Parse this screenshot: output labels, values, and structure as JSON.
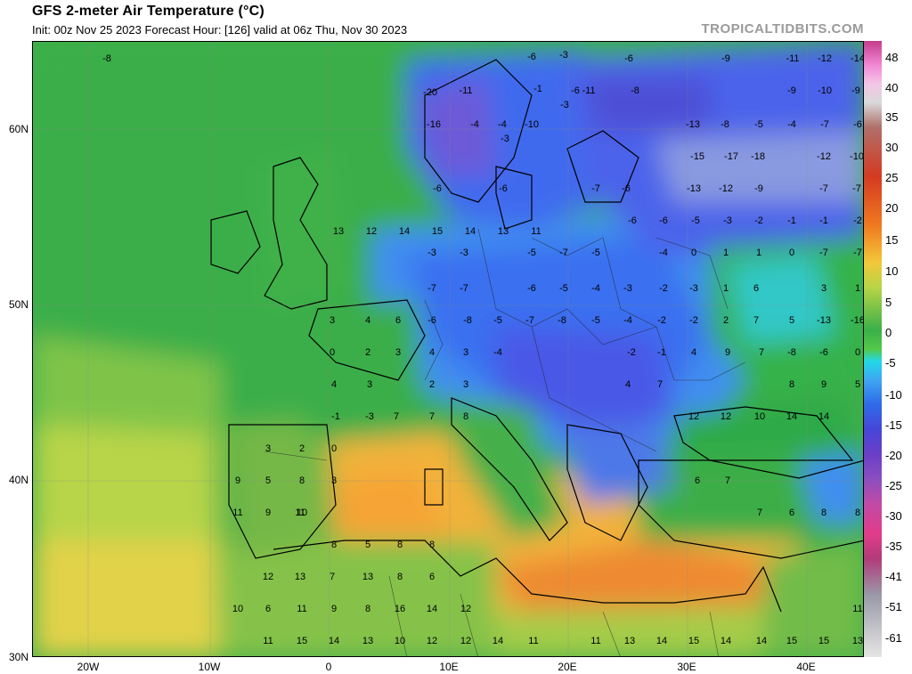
{
  "header": {
    "title": "GFS 2-meter Air Temperature (°C)",
    "subtitle": "Init: 00z Nov 25 2023   Forecast Hour: [126]   valid at 06z Thu, Nov 30 2023",
    "credit": "TROPICALTIDBITS.COM"
  },
  "axes": {
    "lat_ticks": [
      "60N",
      "50N",
      "40N",
      "30N"
    ],
    "lon_ticks": [
      "20W",
      "10W",
      "0",
      "10E",
      "20E",
      "30E",
      "40E"
    ]
  },
  "colorbar": {
    "labels": [
      "48",
      "40",
      "35",
      "30",
      "25",
      "20",
      "15",
      "10",
      "5",
      "0",
      "-5",
      "-10",
      "-15",
      "-20",
      "-25",
      "-30",
      "-35",
      "-41",
      "-51",
      "-61"
    ]
  },
  "map_values": [
    {
      "label": "-8"
    },
    {
      "label": "-20"
    },
    {
      "label": "-11"
    },
    {
      "label": "-16"
    },
    {
      "label": "-4"
    },
    {
      "label": "-3"
    },
    {
      "label": "-6"
    },
    {
      "label": "-3"
    },
    {
      "label": "-1"
    },
    {
      "label": "-6"
    },
    {
      "label": "-3"
    },
    {
      "label": "-6"
    },
    {
      "label": "-9"
    },
    {
      "label": "-11"
    },
    {
      "label": "-12"
    },
    {
      "label": "-14"
    },
    {
      "label": "-11"
    },
    {
      "label": "-8"
    },
    {
      "label": "-9"
    },
    {
      "label": "-10"
    },
    {
      "label": "-9"
    },
    {
      "label": "-4"
    },
    {
      "label": "-10"
    },
    {
      "label": "-13"
    },
    {
      "label": "-8"
    },
    {
      "label": "-5"
    },
    {
      "label": "-4"
    },
    {
      "label": "-7"
    },
    {
      "label": "-6"
    },
    {
      "label": "-15"
    },
    {
      "label": "-17"
    },
    {
      "label": "-18"
    },
    {
      "label": "-12"
    },
    {
      "label": "-10"
    },
    {
      "label": "-13"
    },
    {
      "label": "-12"
    },
    {
      "label": "-9"
    },
    {
      "label": "-7"
    },
    {
      "label": "-7"
    },
    {
      "label": "-7"
    },
    {
      "label": "-6"
    },
    {
      "label": "-6"
    },
    {
      "label": "-6"
    },
    {
      "label": "-6"
    },
    {
      "label": "-6"
    },
    {
      "label": "-5"
    },
    {
      "label": "-3"
    },
    {
      "label": "-2"
    },
    {
      "label": "-1"
    },
    {
      "label": "-1"
    },
    {
      "label": "-2"
    },
    {
      "label": "-3"
    },
    {
      "label": "-3"
    },
    {
      "label": "-5"
    },
    {
      "label": "-7"
    },
    {
      "label": "-5"
    },
    {
      "label": "-4"
    },
    {
      "label": "0"
    },
    {
      "label": "1"
    },
    {
      "label": "1"
    },
    {
      "label": "0"
    },
    {
      "label": "-7"
    },
    {
      "label": "-7"
    },
    {
      "label": "-7"
    },
    {
      "label": "-7"
    },
    {
      "label": "-6"
    },
    {
      "label": "-5"
    },
    {
      "label": "-4"
    },
    {
      "label": "-3"
    },
    {
      "label": "-2"
    },
    {
      "label": "-3"
    },
    {
      "label": "1"
    },
    {
      "label": "6"
    },
    {
      "label": "3"
    },
    {
      "label": "1"
    },
    {
      "label": "-6"
    },
    {
      "label": "-8"
    },
    {
      "label": "-5"
    },
    {
      "label": "-7"
    },
    {
      "label": "-8"
    },
    {
      "label": "-5"
    },
    {
      "label": "-4"
    },
    {
      "label": "-2"
    },
    {
      "label": "-2"
    },
    {
      "label": "2"
    },
    {
      "label": "7"
    },
    {
      "label": "5"
    },
    {
      "label": "-13"
    },
    {
      "label": "-16"
    },
    {
      "label": "-4"
    },
    {
      "label": "-2"
    },
    {
      "label": "-1"
    },
    {
      "label": "4"
    },
    {
      "label": "9"
    },
    {
      "label": "7"
    },
    {
      "label": "-8"
    },
    {
      "label": "-6"
    },
    {
      "label": "0"
    },
    {
      "label": "4"
    },
    {
      "label": "7"
    },
    {
      "label": "8"
    },
    {
      "label": "9"
    },
    {
      "label": "5"
    },
    {
      "label": "3"
    },
    {
      "label": "4"
    },
    {
      "label": "6"
    },
    {
      "label": "2"
    },
    {
      "label": "3"
    },
    {
      "label": "0"
    },
    {
      "label": "2"
    },
    {
      "label": "3"
    },
    {
      "label": "4"
    },
    {
      "label": "3"
    },
    {
      "label": "4"
    },
    {
      "label": "3"
    },
    {
      "label": "-1"
    },
    {
      "label": "-3"
    },
    {
      "label": "0"
    },
    {
      "label": "2"
    },
    {
      "label": "3"
    },
    {
      "label": "8"
    },
    {
      "label": "3"
    },
    {
      "label": "9"
    },
    {
      "label": "5"
    },
    {
      "label": "11"
    },
    {
      "label": "11"
    },
    {
      "label": "9"
    },
    {
      "label": "10"
    },
    {
      "label": "12"
    },
    {
      "label": "12"
    },
    {
      "label": "10"
    },
    {
      "label": "14"
    },
    {
      "label": "14"
    },
    {
      "label": "6"
    },
    {
      "label": "7"
    },
    {
      "label": "7"
    },
    {
      "label": "6"
    },
    {
      "label": "8"
    },
    {
      "label": "8"
    },
    {
      "label": "7"
    },
    {
      "label": "7"
    },
    {
      "label": "8"
    },
    {
      "label": "8"
    },
    {
      "label": "5"
    },
    {
      "label": "8"
    },
    {
      "label": "8"
    },
    {
      "label": "7"
    },
    {
      "label": "13"
    },
    {
      "label": "8"
    },
    {
      "label": "6"
    },
    {
      "label": "12"
    },
    {
      "label": "13"
    },
    {
      "label": "9"
    },
    {
      "label": "8"
    },
    {
      "label": "16"
    },
    {
      "label": "14"
    },
    {
      "label": "12"
    },
    {
      "label": "6"
    },
    {
      "label": "11"
    },
    {
      "label": "10"
    },
    {
      "label": "11"
    },
    {
      "label": "15"
    },
    {
      "label": "14"
    },
    {
      "label": "13"
    },
    {
      "label": "10"
    },
    {
      "label": "12"
    },
    {
      "label": "12"
    },
    {
      "label": "14"
    },
    {
      "label": "11"
    },
    {
      "label": "11"
    },
    {
      "label": "13"
    },
    {
      "label": "14"
    },
    {
      "label": "15"
    },
    {
      "label": "14"
    },
    {
      "label": "14"
    },
    {
      "label": "15"
    },
    {
      "label": "15"
    },
    {
      "label": "13"
    },
    {
      "label": "11"
    },
    {
      "label": "13"
    },
    {
      "label": "12"
    },
    {
      "label": "14"
    },
    {
      "label": "15"
    },
    {
      "label": "14"
    },
    {
      "label": "13"
    },
    {
      "label": "11"
    }
  ]
}
